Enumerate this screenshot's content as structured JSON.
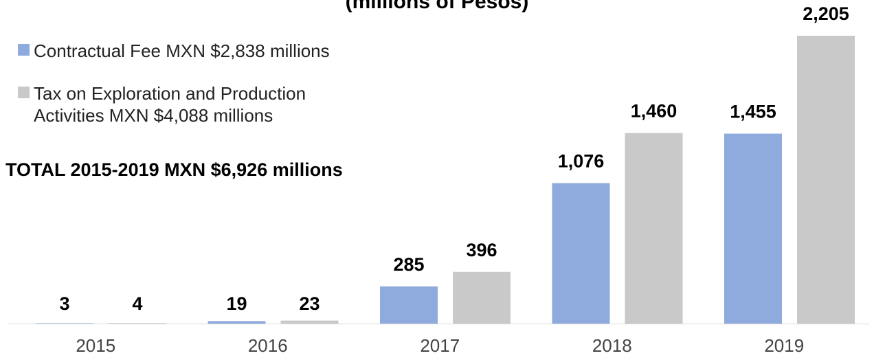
{
  "chart_data": {
    "type": "bar",
    "title": "(millions of Pesos)",
    "categories": [
      "2015",
      "2016",
      "2017",
      "2018",
      "2019"
    ],
    "series": [
      {
        "name": "Contractual Fee MXN $2,838 millions",
        "color": "#8FAADC",
        "values": [
          3,
          19,
          285,
          1076,
          1455
        ],
        "labels": [
          "3",
          "19",
          "285",
          "1,076",
          "1,455"
        ]
      },
      {
        "name": "Tax on Exploration and Production\nActivities MXN $4,088 millions",
        "color": "#C9C9C9",
        "values": [
          4,
          23,
          396,
          1460,
          2205
        ],
        "labels": [
          "4",
          "23",
          "396",
          "1,460",
          "2,205"
        ]
      }
    ],
    "annotation": "TOTAL 2015-2019 MXN $6,926 millions",
    "ylim": [
      0,
      2205
    ],
    "grid": false,
    "legend_position": "top-left"
  }
}
